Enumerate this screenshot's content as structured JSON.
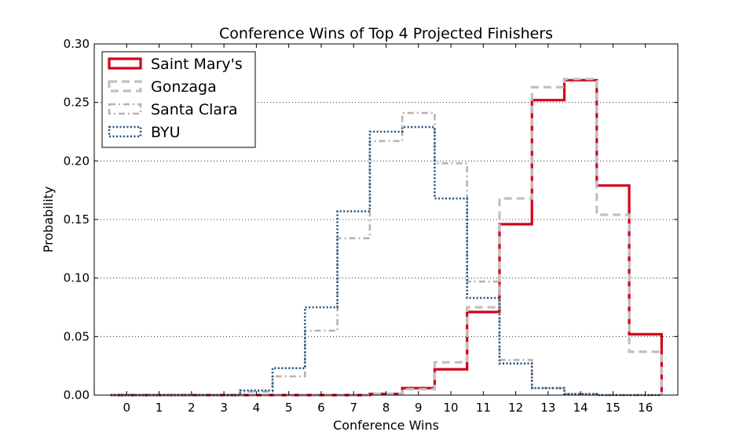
{
  "chart_data": {
    "type": "line",
    "style": "step-histogram",
    "title": "Conference Wins of Top 4 Projected Finishers",
    "xlabel": "Conference Wins",
    "ylabel": "Probability",
    "categories": [
      0,
      1,
      2,
      3,
      4,
      5,
      6,
      7,
      8,
      9,
      10,
      11,
      12,
      13,
      14,
      15,
      16
    ],
    "xlim": [
      -1,
      17
    ],
    "ylim": [
      0,
      0.3
    ],
    "yticks": [
      0.0,
      0.05,
      0.1,
      0.15,
      0.2,
      0.25,
      0.3
    ],
    "ytick_labels": [
      "0.00",
      "0.05",
      "0.10",
      "0.15",
      "0.20",
      "0.25",
      "0.30"
    ],
    "grid": "y-dotted",
    "legend_position": "top-left",
    "series": [
      {
        "name": "Saint Mary's",
        "color": "#d0021b",
        "line_style": "solid",
        "values": [
          0,
          0,
          0,
          0,
          0,
          0,
          0,
          0,
          0.001,
          0.006,
          0.022,
          0.071,
          0.146,
          0.252,
          0.269,
          0.179,
          0.052
        ]
      },
      {
        "name": "Gonzaga",
        "color": "#c0c0c0",
        "line_style": "dashed",
        "values": [
          0,
          0,
          0,
          0,
          0,
          0,
          0,
          0,
          0.001,
          0.005,
          0.028,
          0.075,
          0.168,
          0.263,
          0.27,
          0.154,
          0.037
        ]
      },
      {
        "name": "Santa Clara",
        "color": "#b4b4b4",
        "line_style": "dashdot",
        "values": [
          0,
          0,
          0,
          0,
          0.003,
          0.016,
          0.055,
          0.134,
          0.217,
          0.241,
          0.198,
          0.097,
          0.03,
          0.006,
          0.001,
          0,
          0
        ]
      },
      {
        "name": "BYU",
        "color": "#1f4e79",
        "line_style": "dotted",
        "values": [
          0,
          0,
          0,
          0,
          0.004,
          0.023,
          0.075,
          0.157,
          0.225,
          0.229,
          0.168,
          0.083,
          0.027,
          0.006,
          0.001,
          0,
          0
        ]
      }
    ]
  }
}
